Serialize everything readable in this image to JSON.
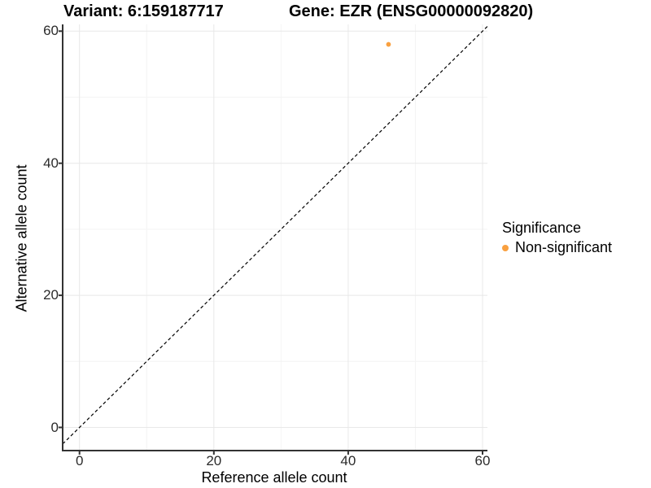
{
  "chart_data": {
    "type": "scatter",
    "title_left": "Variant: 6:159187717",
    "title_right": "Gene: EZR (ENSG00000092820)",
    "xlabel": "Reference allele count",
    "ylabel": "Alternative allele count",
    "xlim": [
      -2.5,
      60.8
    ],
    "ylim": [
      -3.5,
      61
    ],
    "x_ticks": [
      0,
      20,
      40,
      60
    ],
    "y_ticks": [
      0,
      20,
      40,
      60
    ],
    "x_minor_ticks": [
      10,
      30,
      50
    ],
    "y_minor_ticks": [
      10,
      30,
      50
    ],
    "grid": true,
    "legend_position": "right",
    "series": [
      {
        "name": "Non-significant",
        "color": "#F9A03F",
        "marker": "circle",
        "points": [
          {
            "x": 46,
            "y": 58
          }
        ]
      }
    ],
    "reference_line": {
      "equation": "y = x",
      "style": "dashed",
      "color": "#000000"
    },
    "legend": {
      "title": "Significance",
      "items": [
        {
          "label": "Non-significant",
          "color": "#F9A03F"
        }
      ]
    },
    "colors": {
      "background": "#ffffff",
      "grid_major": "#e8e8e8",
      "grid_minor": "#f4f4f4",
      "axis_line": "#333333",
      "tick_text": "#2b2b2b",
      "point": "#F9A03F"
    }
  }
}
